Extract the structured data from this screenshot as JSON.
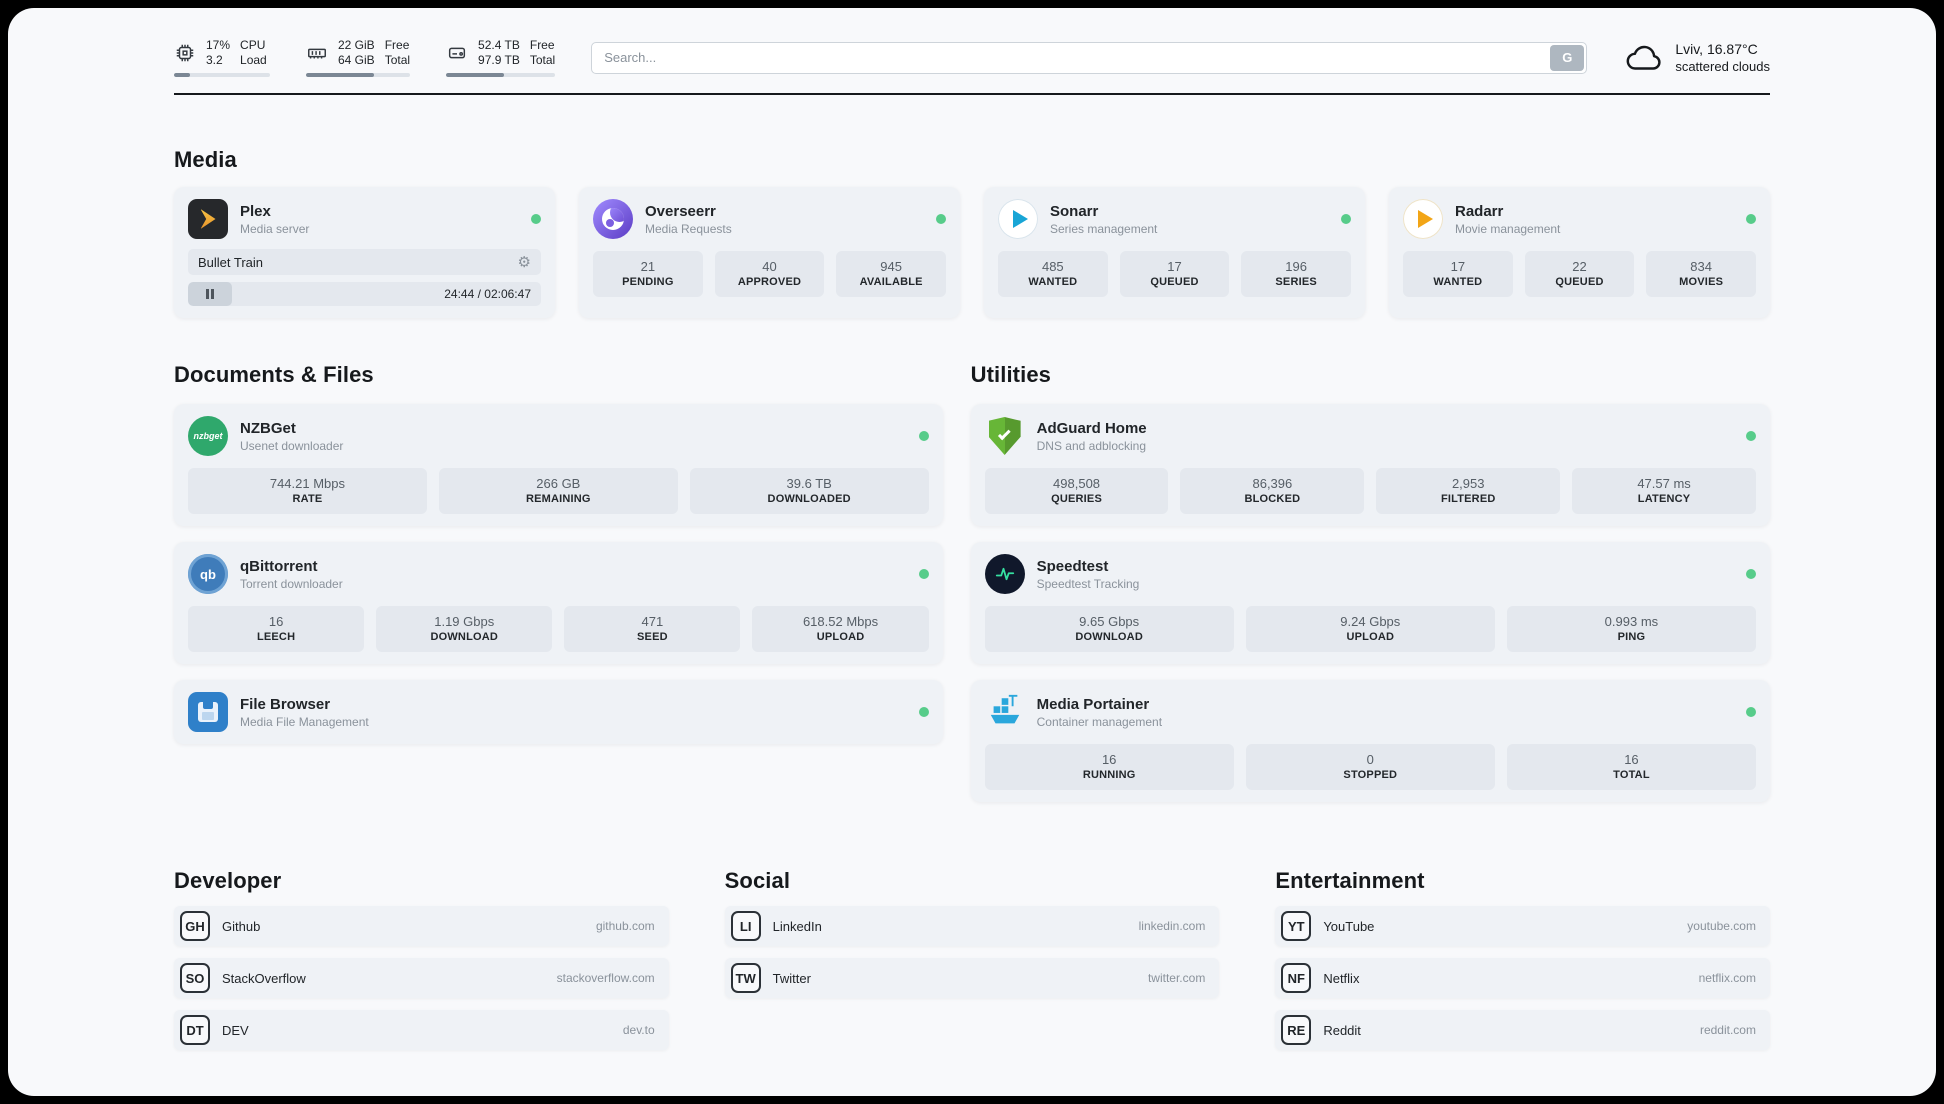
{
  "header": {
    "cpu": {
      "value": "17%",
      "sub": "3.2",
      "label_top": "CPU",
      "label_bottom": "Load",
      "bar_percent": 17
    },
    "ram": {
      "value": "22 GiB",
      "sub": "64 GiB",
      "label_top": "Free",
      "label_bottom": "Total",
      "bar_percent": 65
    },
    "disk": {
      "value": "52.4 TB",
      "sub": "97.9 TB",
      "label_top": "Free",
      "label_bottom": "Total",
      "bar_percent": 53
    },
    "search": {
      "placeholder": "Search...",
      "engine_button": "G"
    },
    "weather": {
      "location": "Lviv, 16.87°C",
      "condition": "scattered clouds"
    }
  },
  "sections": {
    "media": "Media",
    "documents": "Documents & Files",
    "utilities": "Utilities",
    "developer": "Developer",
    "social": "Social",
    "entertainment": "Entertainment"
  },
  "media": {
    "plex": {
      "name": "Plex",
      "desc": "Media server",
      "now_playing": "Bullet Train",
      "time": "24:44 / 02:06:47"
    },
    "overseerr": {
      "name": "Overseerr",
      "desc": "Media Requests",
      "stats": [
        {
          "value": "21",
          "label": "PENDING"
        },
        {
          "value": "40",
          "label": "APPROVED"
        },
        {
          "value": "945",
          "label": "AVAILABLE"
        }
      ]
    },
    "sonarr": {
      "name": "Sonarr",
      "desc": "Series management",
      "stats": [
        {
          "value": "485",
          "label": "WANTED"
        },
        {
          "value": "17",
          "label": "QUEUED"
        },
        {
          "value": "196",
          "label": "SERIES"
        }
      ]
    },
    "radarr": {
      "name": "Radarr",
      "desc": "Movie management",
      "stats": [
        {
          "value": "17",
          "label": "WANTED"
        },
        {
          "value": "22",
          "label": "QUEUED"
        },
        {
          "value": "834",
          "label": "MOVIES"
        }
      ]
    }
  },
  "documents": {
    "nzbget": {
      "name": "NZBGet",
      "desc": "Usenet downloader",
      "icon_label": "nzbget",
      "stats": [
        {
          "value": "744.21 Mbps",
          "label": "RATE"
        },
        {
          "value": "266 GB",
          "label": "REMAINING"
        },
        {
          "value": "39.6 TB",
          "label": "DOWNLOADED"
        }
      ]
    },
    "qbittorrent": {
      "name": "qBittorrent",
      "desc": "Torrent downloader",
      "icon_label": "qb",
      "stats": [
        {
          "value": "16",
          "label": "LEECH"
        },
        {
          "value": "1.19 Gbps",
          "label": "DOWNLOAD"
        },
        {
          "value": "471",
          "label": "SEED"
        },
        {
          "value": "618.52 Mbps",
          "label": "UPLOAD"
        }
      ]
    },
    "filebrowser": {
      "name": "File Browser",
      "desc": "Media File Management"
    }
  },
  "utilities": {
    "adguard": {
      "name": "AdGuard Home",
      "desc": "DNS and adblocking",
      "stats": [
        {
          "value": "498,508",
          "label": "QUERIES"
        },
        {
          "value": "86,396",
          "label": "BLOCKED"
        },
        {
          "value": "2,953",
          "label": "FILTERED"
        },
        {
          "value": "47.57 ms",
          "label": "LATENCY"
        }
      ]
    },
    "speedtest": {
      "name": "Speedtest",
      "desc": "Speedtest Tracking",
      "stats": [
        {
          "value": "9.65 Gbps",
          "label": "DOWNLOAD"
        },
        {
          "value": "9.24 Gbps",
          "label": "UPLOAD"
        },
        {
          "value": "0.993 ms",
          "label": "PING"
        }
      ]
    },
    "portainer": {
      "name": "Media Portainer",
      "desc": "Container management",
      "stats": [
        {
          "value": "16",
          "label": "RUNNING"
        },
        {
          "value": "0",
          "label": "STOPPED"
        },
        {
          "value": "16",
          "label": "TOTAL"
        }
      ]
    }
  },
  "links": {
    "developer": [
      {
        "badge": "GH",
        "name": "Github",
        "domain": "github.com"
      },
      {
        "badge": "SO",
        "name": "StackOverflow",
        "domain": "stackoverflow.com"
      },
      {
        "badge": "DT",
        "name": "DEV",
        "domain": "dev.to"
      }
    ],
    "social": [
      {
        "badge": "LI",
        "name": "LinkedIn",
        "domain": "linkedin.com"
      },
      {
        "badge": "TW",
        "name": "Twitter",
        "domain": "twitter.com"
      }
    ],
    "entertainment": [
      {
        "badge": "YT",
        "name": "YouTube",
        "domain": "youtube.com"
      },
      {
        "badge": "NF",
        "name": "Netflix",
        "domain": "netflix.com"
      },
      {
        "badge": "RE",
        "name": "Reddit",
        "domain": "reddit.com"
      }
    ]
  },
  "colors": {
    "status_online": "#57cc8a",
    "panel_bg": "#f8f9fb",
    "card_bg": "#eff2f6",
    "tile_bg": "#e4e8ee"
  }
}
